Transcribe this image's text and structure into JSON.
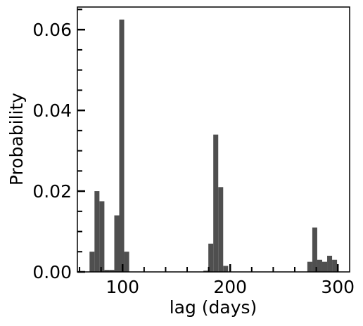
{
  "chart_data": {
    "type": "histogram",
    "xlabel": "lag (days)",
    "ylabel": "Probability",
    "bins": [
      69.3,
      73.9,
      78.5,
      83.1,
      87.7,
      92.3,
      96.9,
      101.5,
      106.1,
      110.7,
      115.3,
      119.9,
      124.5,
      129.1,
      133.7,
      138.3,
      142.9,
      147.5,
      152.1,
      156.7,
      161.3,
      165.9,
      170.5,
      175.1,
      179.7,
      184.3,
      188.9,
      193.5,
      198.1,
      202.7,
      207.3,
      211.9,
      216.5,
      221.1,
      225.7,
      230.3,
      234.9,
      239.5,
      244.1,
      248.7,
      253.3,
      257.9,
      262.5,
      267.1,
      271.7,
      276.3,
      280.9,
      285.5,
      290.1,
      294.7,
      299.3
    ],
    "values": [
      0.005,
      0.02,
      0.0175,
      0.0005,
      0.0005,
      0.014,
      0.0625,
      0.005,
      0,
      0,
      0,
      0,
      0,
      0,
      0,
      0,
      0,
      0,
      0,
      0,
      0,
      0,
      0,
      0.0003,
      0.007,
      0.034,
      0.021,
      0.0015,
      0,
      0,
      0,
      0,
      0,
      0,
      0,
      0,
      0,
      0,
      0,
      0,
      0,
      0,
      0,
      0,
      0.0025,
      0.011,
      0.003,
      0.0025,
      0.004,
      0.003
    ],
    "color": "#4f4f4f",
    "xlim": [
      58,
      311
    ],
    "ylim": [
      0,
      0.0656
    ],
    "xticks": [
      100,
      200,
      300
    ],
    "yticks": [
      {
        "value": 0,
        "label": "0.00"
      },
      {
        "value": 0.02,
        "label": "0.02"
      },
      {
        "value": 0.04,
        "label": "0.04"
      },
      {
        "value": 0.06,
        "label": "0.06"
      }
    ],
    "xminorticks": [
      60,
      80,
      120,
      140,
      160,
      180,
      220,
      240,
      260,
      280
    ],
    "yminorticks": [
      0.005,
      0.01,
      0.015,
      0.025,
      0.03,
      0.035,
      0.045,
      0.05,
      0.055,
      0.065
    ]
  }
}
